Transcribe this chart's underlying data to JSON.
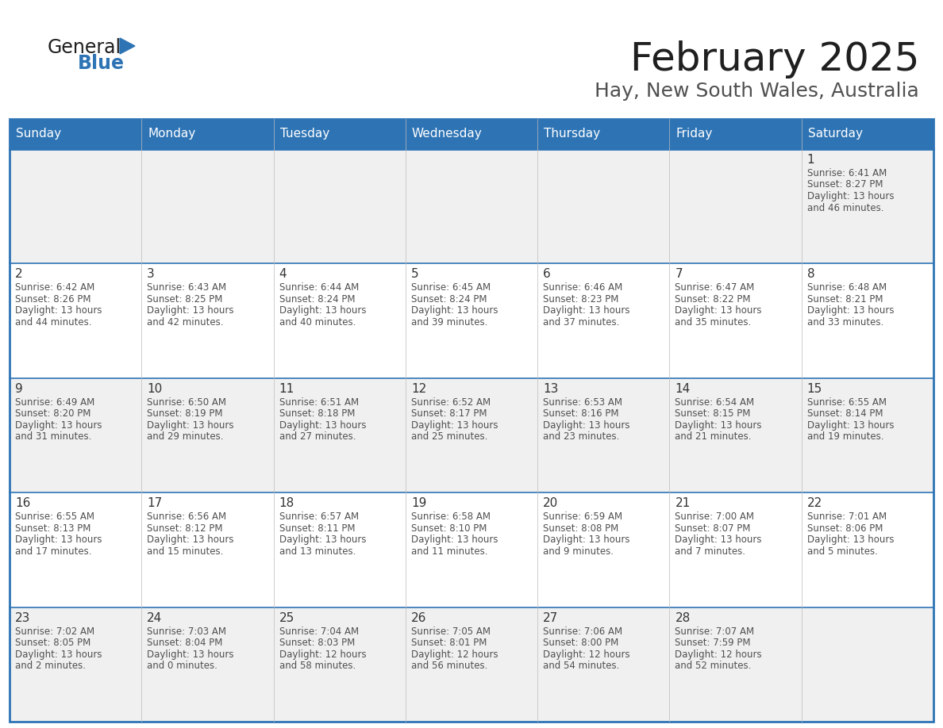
{
  "title": "February 2025",
  "subtitle": "Hay, New South Wales, Australia",
  "header_bg": "#2E74B5",
  "header_text_color": "#FFFFFF",
  "cell_bg_white": "#FFFFFF",
  "cell_bg_gray": "#F0F0F0",
  "border_color": "#2E74B5",
  "inner_border_color": "#CCCCCC",
  "day_names": [
    "Sunday",
    "Monday",
    "Tuesday",
    "Wednesday",
    "Thursday",
    "Friday",
    "Saturday"
  ],
  "title_color": "#1F1F1F",
  "subtitle_color": "#505050",
  "day_number_color": "#333333",
  "cell_text_color": "#505050",
  "logo_general_color": "#1F1F1F",
  "logo_blue_color": "#2E74B5",
  "calendar": [
    [
      null,
      null,
      null,
      null,
      null,
      null,
      {
        "day": 1,
        "sunrise": "6:41 AM",
        "sunset": "8:27 PM",
        "daylight_hours": 13,
        "daylight_minutes": 46
      }
    ],
    [
      {
        "day": 2,
        "sunrise": "6:42 AM",
        "sunset": "8:26 PM",
        "daylight_hours": 13,
        "daylight_minutes": 44
      },
      {
        "day": 3,
        "sunrise": "6:43 AM",
        "sunset": "8:25 PM",
        "daylight_hours": 13,
        "daylight_minutes": 42
      },
      {
        "day": 4,
        "sunrise": "6:44 AM",
        "sunset": "8:24 PM",
        "daylight_hours": 13,
        "daylight_minutes": 40
      },
      {
        "day": 5,
        "sunrise": "6:45 AM",
        "sunset": "8:24 PM",
        "daylight_hours": 13,
        "daylight_minutes": 39
      },
      {
        "day": 6,
        "sunrise": "6:46 AM",
        "sunset": "8:23 PM",
        "daylight_hours": 13,
        "daylight_minutes": 37
      },
      {
        "day": 7,
        "sunrise": "6:47 AM",
        "sunset": "8:22 PM",
        "daylight_hours": 13,
        "daylight_minutes": 35
      },
      {
        "day": 8,
        "sunrise": "6:48 AM",
        "sunset": "8:21 PM",
        "daylight_hours": 13,
        "daylight_minutes": 33
      }
    ],
    [
      {
        "day": 9,
        "sunrise": "6:49 AM",
        "sunset": "8:20 PM",
        "daylight_hours": 13,
        "daylight_minutes": 31
      },
      {
        "day": 10,
        "sunrise": "6:50 AM",
        "sunset": "8:19 PM",
        "daylight_hours": 13,
        "daylight_minutes": 29
      },
      {
        "day": 11,
        "sunrise": "6:51 AM",
        "sunset": "8:18 PM",
        "daylight_hours": 13,
        "daylight_minutes": 27
      },
      {
        "day": 12,
        "sunrise": "6:52 AM",
        "sunset": "8:17 PM",
        "daylight_hours": 13,
        "daylight_minutes": 25
      },
      {
        "day": 13,
        "sunrise": "6:53 AM",
        "sunset": "8:16 PM",
        "daylight_hours": 13,
        "daylight_minutes": 23
      },
      {
        "day": 14,
        "sunrise": "6:54 AM",
        "sunset": "8:15 PM",
        "daylight_hours": 13,
        "daylight_minutes": 21
      },
      {
        "day": 15,
        "sunrise": "6:55 AM",
        "sunset": "8:14 PM",
        "daylight_hours": 13,
        "daylight_minutes": 19
      }
    ],
    [
      {
        "day": 16,
        "sunrise": "6:55 AM",
        "sunset": "8:13 PM",
        "daylight_hours": 13,
        "daylight_minutes": 17
      },
      {
        "day": 17,
        "sunrise": "6:56 AM",
        "sunset": "8:12 PM",
        "daylight_hours": 13,
        "daylight_minutes": 15
      },
      {
        "day": 18,
        "sunrise": "6:57 AM",
        "sunset": "8:11 PM",
        "daylight_hours": 13,
        "daylight_minutes": 13
      },
      {
        "day": 19,
        "sunrise": "6:58 AM",
        "sunset": "8:10 PM",
        "daylight_hours": 13,
        "daylight_minutes": 11
      },
      {
        "day": 20,
        "sunrise": "6:59 AM",
        "sunset": "8:08 PM",
        "daylight_hours": 13,
        "daylight_minutes": 9
      },
      {
        "day": 21,
        "sunrise": "7:00 AM",
        "sunset": "8:07 PM",
        "daylight_hours": 13,
        "daylight_minutes": 7
      },
      {
        "day": 22,
        "sunrise": "7:01 AM",
        "sunset": "8:06 PM",
        "daylight_hours": 13,
        "daylight_minutes": 5
      }
    ],
    [
      {
        "day": 23,
        "sunrise": "7:02 AM",
        "sunset": "8:05 PM",
        "daylight_hours": 13,
        "daylight_minutes": 2
      },
      {
        "day": 24,
        "sunrise": "7:03 AM",
        "sunset": "8:04 PM",
        "daylight_hours": 13,
        "daylight_minutes": 0
      },
      {
        "day": 25,
        "sunrise": "7:04 AM",
        "sunset": "8:03 PM",
        "daylight_hours": 12,
        "daylight_minutes": 58
      },
      {
        "day": 26,
        "sunrise": "7:05 AM",
        "sunset": "8:01 PM",
        "daylight_hours": 12,
        "daylight_minutes": 56
      },
      {
        "day": 27,
        "sunrise": "7:06 AM",
        "sunset": "8:00 PM",
        "daylight_hours": 12,
        "daylight_minutes": 54
      },
      {
        "day": 28,
        "sunrise": "7:07 AM",
        "sunset": "7:59 PM",
        "daylight_hours": 12,
        "daylight_minutes": 52
      },
      null
    ]
  ]
}
